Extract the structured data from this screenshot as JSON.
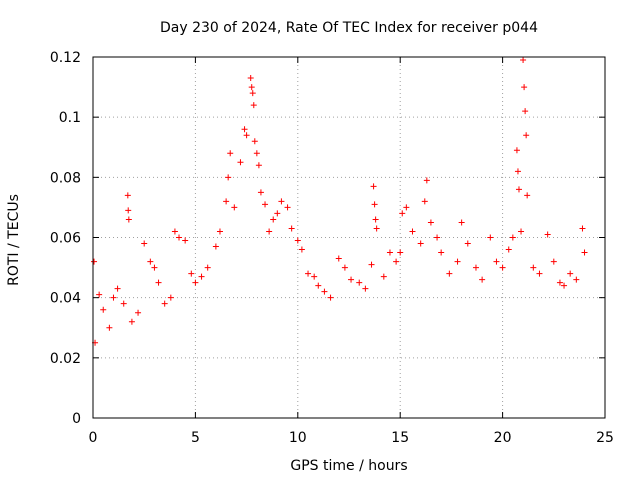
{
  "chart_data": {
    "type": "scatter",
    "title": "Day 230 of 2024, Rate Of TEC Index for receiver p044",
    "xlabel": "GPS time / hours",
    "ylabel": "ROTI / TECUs",
    "xlim": [
      0,
      25
    ],
    "ylim": [
      0,
      0.12
    ],
    "x_ticks": [
      0,
      5,
      10,
      15,
      20,
      25
    ],
    "x_tick_labels": [
      "0",
      "5",
      "10",
      "15",
      "20",
      "25"
    ],
    "y_ticks": [
      0,
      0.02,
      0.04,
      0.06,
      0.08,
      0.1,
      0.12
    ],
    "y_tick_labels": [
      "0",
      "0.02",
      "0.04",
      "0.06",
      "0.08",
      "0.1",
      "0.12"
    ],
    "grid": true,
    "legend": "none",
    "marker": "plus",
    "color": "#ff0000",
    "x_range_of_data": [
      0,
      24
    ],
    "series": [
      {
        "points": [
          [
            0.05,
            0.052
          ],
          [
            0.1,
            0.025
          ],
          [
            0.3,
            0.041
          ],
          [
            0.5,
            0.036
          ],
          [
            0.8,
            0.03
          ],
          [
            1.0,
            0.04
          ],
          [
            1.2,
            0.043
          ],
          [
            1.5,
            0.038
          ],
          [
            1.7,
            0.074
          ],
          [
            1.72,
            0.069
          ],
          [
            1.75,
            0.066
          ],
          [
            1.9,
            0.032
          ],
          [
            2.2,
            0.035
          ],
          [
            2.5,
            0.058
          ],
          [
            2.8,
            0.052
          ],
          [
            3.0,
            0.05
          ],
          [
            3.2,
            0.045
          ],
          [
            3.5,
            0.038
          ],
          [
            3.8,
            0.04
          ],
          [
            4.0,
            0.062
          ],
          [
            4.2,
            0.06
          ],
          [
            4.5,
            0.059
          ],
          [
            4.8,
            0.048
          ],
          [
            5.0,
            0.045
          ],
          [
            5.3,
            0.047
          ],
          [
            5.6,
            0.05
          ],
          [
            6.0,
            0.057
          ],
          [
            6.2,
            0.062
          ],
          [
            6.5,
            0.072
          ],
          [
            6.6,
            0.08
          ],
          [
            6.7,
            0.088
          ],
          [
            6.9,
            0.07
          ],
          [
            7.2,
            0.085
          ],
          [
            7.4,
            0.096
          ],
          [
            7.5,
            0.094
          ],
          [
            7.7,
            0.113
          ],
          [
            7.75,
            0.11
          ],
          [
            7.8,
            0.108
          ],
          [
            7.85,
            0.104
          ],
          [
            7.9,
            0.092
          ],
          [
            8.0,
            0.088
          ],
          [
            8.1,
            0.084
          ],
          [
            8.2,
            0.075
          ],
          [
            8.4,
            0.071
          ],
          [
            8.6,
            0.062
          ],
          [
            8.8,
            0.066
          ],
          [
            9.0,
            0.068
          ],
          [
            9.2,
            0.072
          ],
          [
            9.5,
            0.07
          ],
          [
            9.7,
            0.063
          ],
          [
            10.0,
            0.059
          ],
          [
            10.2,
            0.056
          ],
          [
            10.5,
            0.048
          ],
          [
            10.8,
            0.047
          ],
          [
            11.0,
            0.044
          ],
          [
            11.3,
            0.042
          ],
          [
            11.6,
            0.04
          ],
          [
            12.0,
            0.053
          ],
          [
            12.3,
            0.05
          ],
          [
            12.6,
            0.046
          ],
          [
            13.0,
            0.045
          ],
          [
            13.3,
            0.043
          ],
          [
            13.6,
            0.051
          ],
          [
            13.7,
            0.077
          ],
          [
            13.75,
            0.071
          ],
          [
            13.8,
            0.066
          ],
          [
            13.85,
            0.063
          ],
          [
            14.2,
            0.047
          ],
          [
            14.5,
            0.055
          ],
          [
            14.8,
            0.052
          ],
          [
            15.0,
            0.055
          ],
          [
            15.1,
            0.068
          ],
          [
            15.3,
            0.07
          ],
          [
            15.6,
            0.062
          ],
          [
            16.0,
            0.058
          ],
          [
            16.2,
            0.072
          ],
          [
            16.3,
            0.079
          ],
          [
            16.5,
            0.065
          ],
          [
            16.8,
            0.06
          ],
          [
            17.0,
            0.055
          ],
          [
            17.4,
            0.048
          ],
          [
            17.8,
            0.052
          ],
          [
            18.0,
            0.065
          ],
          [
            18.3,
            0.058
          ],
          [
            18.7,
            0.05
          ],
          [
            19.0,
            0.046
          ],
          [
            19.4,
            0.06
          ],
          [
            19.7,
            0.052
          ],
          [
            20.0,
            0.05
          ],
          [
            20.3,
            0.056
          ],
          [
            20.5,
            0.06
          ],
          [
            20.7,
            0.089
          ],
          [
            20.75,
            0.082
          ],
          [
            20.8,
            0.076
          ],
          [
            20.9,
            0.062
          ],
          [
            21.0,
            0.119
          ],
          [
            21.05,
            0.11
          ],
          [
            21.1,
            0.102
          ],
          [
            21.15,
            0.094
          ],
          [
            21.2,
            0.074
          ],
          [
            21.5,
            0.05
          ],
          [
            21.8,
            0.048
          ],
          [
            22.2,
            0.061
          ],
          [
            22.5,
            0.052
          ],
          [
            22.8,
            0.045
          ],
          [
            23.0,
            0.044
          ],
          [
            23.3,
            0.048
          ],
          [
            23.6,
            0.046
          ],
          [
            23.9,
            0.063
          ],
          [
            24.0,
            0.055
          ]
        ]
      }
    ]
  }
}
